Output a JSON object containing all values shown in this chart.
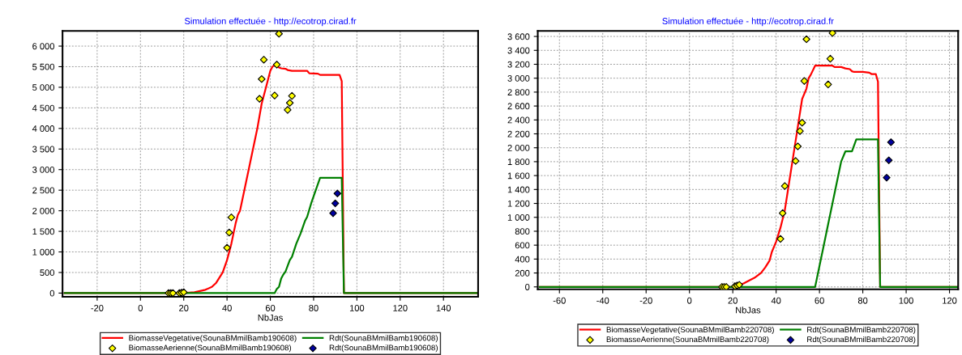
{
  "chart_data": [
    {
      "type": "line",
      "title": "Simulation effectuée - http://ecotrop.cirad.fr",
      "xlabel": "NbJas",
      "xlim": [
        -36,
        156
      ],
      "xticks": [
        -20,
        0,
        20,
        40,
        60,
        80,
        100,
        120,
        140
      ],
      "ylim": [
        -90,
        6370
      ],
      "yticks": [
        0,
        500,
        {
          "value": 1000,
          "label": "1 000"
        },
        {
          "value": 1500,
          "label": "1 500"
        },
        {
          "value": 2000,
          "label": "2 000"
        },
        {
          "value": 2500,
          "label": "2 500"
        },
        {
          "value": 3000,
          "label": "3 000"
        },
        {
          "value": 3500,
          "label": "3 500"
        },
        {
          "value": 4000,
          "label": "4 000"
        },
        {
          "value": 4500,
          "label": "4 500"
        },
        {
          "value": 5000,
          "label": "5 000"
        },
        {
          "value": 5500,
          "label": "5 500"
        },
        {
          "value": 6000,
          "label": "6 000"
        }
      ],
      "grid": true,
      "legend": "bottom",
      "series": [
        {
          "name": "BiomasseVegetative(SounaBMmilBamb190608)",
          "color": "#ff0000",
          "x": [
            -35,
            20,
            25,
            30,
            33,
            35,
            37,
            38,
            40,
            42,
            44,
            45,
            46,
            48,
            50,
            52,
            54,
            56,
            58,
            60,
            61,
            62,
            63,
            64,
            65,
            67,
            68,
            70,
            77,
            78,
            82,
            83,
            92,
            93,
            94,
            156
          ],
          "values": [
            0,
            0,
            20,
            80,
            150,
            250,
            420,
            500,
            800,
            1200,
            1700,
            1900,
            2000,
            2500,
            3000,
            3500,
            4000,
            4600,
            5000,
            5400,
            5500,
            5550,
            5530,
            5480,
            5460,
            5450,
            5420,
            5400,
            5400,
            5340,
            5330,
            5300,
            5300,
            5150,
            0,
            0
          ]
        },
        {
          "name": "BiomasseAerienne(SounaBMmilBamb190608)",
          "type": "scatter",
          "marker": "diamond",
          "color": "#ffff00",
          "x": [
            13,
            14,
            15,
            18,
            19,
            20,
            40,
            41,
            42,
            55,
            56,
            57,
            62,
            63,
            64,
            68,
            69,
            70
          ],
          "values": [
            0,
            0,
            0,
            0,
            10,
            20,
            1100,
            1470,
            1840,
            4720,
            5200,
            5670,
            4800,
            5550,
            6300,
            4450,
            4620,
            4790
          ]
        },
        {
          "name": "Rdt(SounaBMmilBamb190608)",
          "color": "#008000",
          "x": [
            -35,
            62,
            63,
            64,
            65,
            66,
            67,
            69,
            70,
            72,
            74,
            76,
            77,
            79,
            81,
            83,
            93,
            94,
            156
          ],
          "values": [
            0,
            0,
            100,
            150,
            350,
            450,
            520,
            800,
            880,
            1200,
            1450,
            1750,
            1850,
            2200,
            2500,
            2800,
            2800,
            0,
            0
          ]
        },
        {
          "name": "Rdt(SounaBMmilBamb190608)",
          "type": "scatter",
          "marker": "diamond",
          "color": "#0000a0",
          "x": [
            89,
            90,
            91
          ],
          "values": [
            1940,
            2180,
            2420
          ]
        }
      ]
    },
    {
      "type": "line",
      "title": "Simulation effectuée - http://ecotrop.cirad.fr",
      "xlabel": "NbJas",
      "xlim": [
        -70,
        124
      ],
      "xticks": [
        -60,
        -40,
        -20,
        0,
        20,
        40,
        60,
        80,
        100,
        120
      ],
      "ylim": [
        -35,
        3680
      ],
      "yticks": [
        0,
        200,
        400,
        600,
        800,
        {
          "value": 1000,
          "label": "1 000"
        },
        {
          "value": 1200,
          "label": "1 200"
        },
        {
          "value": 1400,
          "label": "1 400"
        },
        {
          "value": 1600,
          "label": "1 600"
        },
        {
          "value": 1800,
          "label": "1 800"
        },
        {
          "value": 2000,
          "label": "2 000"
        },
        {
          "value": 2200,
          "label": "2 200"
        },
        {
          "value": 2400,
          "label": "2 400"
        },
        {
          "value": 2600,
          "label": "2 600"
        },
        {
          "value": 2800,
          "label": "2 800"
        },
        {
          "value": 3000,
          "label": "3 000"
        },
        {
          "value": 3200,
          "label": "3 200"
        },
        {
          "value": 3400,
          "label": "3 400"
        },
        {
          "value": 3600,
          "label": "3 600"
        }
      ],
      "grid": true,
      "legend": "bottom",
      "series": [
        {
          "name": "BiomasseVegetative(SounaBMmilBamb220708)",
          "color": "#ff0000",
          "x": [
            -69,
            20,
            22,
            25,
            28,
            30,
            33,
            35,
            37,
            38,
            40,
            42,
            44,
            46,
            48,
            50,
            52,
            54,
            55,
            56,
            58,
            66,
            67,
            70,
            72,
            74,
            75,
            76,
            80,
            83,
            84,
            86,
            87,
            88,
            124
          ],
          "values": [
            0,
            0,
            20,
            50,
            100,
            130,
            200,
            280,
            380,
            500,
            650,
            850,
            1100,
            1500,
            1900,
            2300,
            2700,
            2850,
            3000,
            3050,
            3180,
            3180,
            3160,
            3160,
            3140,
            3130,
            3100,
            3090,
            3090,
            3080,
            3060,
            3060,
            2950,
            0,
            0
          ]
        },
        {
          "name": "BiomasseAerienne(SounaBMmilBamb220708)",
          "type": "scatter",
          "marker": "diamond",
          "color": "#ffff00",
          "x": [
            15,
            16,
            17,
            21,
            22,
            23,
            42,
            43,
            44,
            49,
            50,
            51,
            52,
            53,
            54,
            64,
            65,
            66
          ],
          "values": [
            0,
            0,
            0,
            10,
            20,
            30,
            690,
            1060,
            1450,
            1810,
            2020,
            2240,
            2360,
            2960,
            3560,
            2910,
            3280,
            3650
          ]
        },
        {
          "name": "Rdt(SounaBMmilBamb220708)",
          "color": "#008000",
          "x": [
            -69,
            58,
            60,
            62,
            64,
            66,
            68,
            70,
            72,
            75,
            77,
            86,
            87,
            88,
            124
          ],
          "values": [
            0,
            0,
            300,
            600,
            900,
            1200,
            1500,
            1800,
            1950,
            1950,
            2120,
            2120,
            2120,
            0,
            0
          ]
        },
        {
          "name": "Rdt(SounaBMmilBamb220708)",
          "type": "scatter",
          "marker": "diamond",
          "color": "#0000a0",
          "x": [
            91,
            92,
            93
          ],
          "values": [
            1570,
            1820,
            2080
          ]
        }
      ]
    }
  ]
}
